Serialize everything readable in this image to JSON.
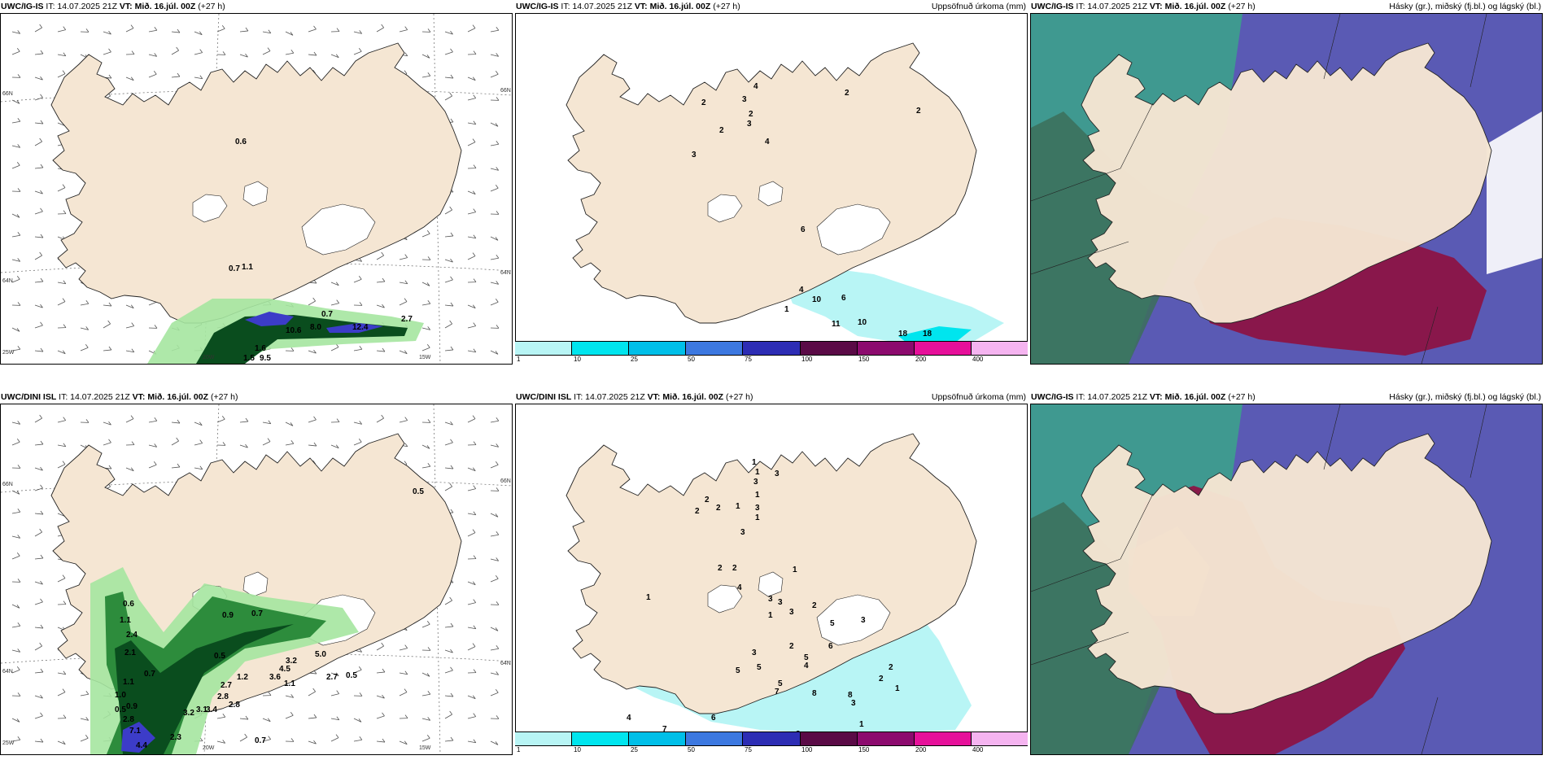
{
  "rows": [
    {
      "model": "UWC/IG-IS",
      "it_label": "IT: 14.07.2025 21Z",
      "vt_label": "VT: Mið. 16.júl. 00Z",
      "lead": "(+27 h)"
    },
    {
      "model": "UWC/DINI ISL",
      "it_label": "IT: 14.07.2025 21Z",
      "vt_label": "VT: Mið. 16.júl. 00Z",
      "lead": "(+27 h)"
    }
  ],
  "row3_model": [
    "UWC/IG-IS",
    "UWC/IG-IS"
  ],
  "panel_titles": {
    "wind": "",
    "precip": "Uppsöfnuð úrkoma (mm)",
    "cloud": "Hásky (gr.), miðský (fj.bl.) og lágský (bl.)"
  },
  "grid_labels": {
    "lat_66": "66N",
    "lat_64": "64N",
    "lat_25w": "25W",
    "lon_20w": "20W",
    "lon_15w": "15W"
  },
  "precip_colorbar": {
    "ticks": [
      "1",
      "10",
      "25",
      "50",
      "75",
      "100",
      "150",
      "200",
      "400"
    ],
    "colors": [
      "#b8f5f5",
      "#00e5ee",
      "#00bfe8",
      "#3c78e0",
      "#2d2db4",
      "#5a0a46",
      "#8c0a6e",
      "#e6109a",
      "#f5b4f0"
    ]
  },
  "map_colors": {
    "land": "#f5e6d3",
    "sea": "#ffffff",
    "glacier": "#ffffff",
    "precip_light": "#a5e6a0",
    "precip_mid": "#2d8c3c",
    "precip_dark": "#0a4d1e",
    "precip_heavy": "#3c3cc8",
    "cloud_high": "#5a5ab4",
    "cloud_mid": "#8c1446",
    "cloud_low": "#3ca08c",
    "cloud_green": "#28c88c"
  },
  "wind_labels_row1": [
    "0.6",
    "0.7",
    "1.1",
    "0.7",
    "8.0",
    "10.6",
    "12.4",
    "2.7",
    "1.6",
    "1.5",
    "9.5"
  ],
  "wind_labels_row2": [
    "0.6",
    "0.5",
    "1.1",
    "2.1",
    "2.4",
    "0.5",
    "1.1",
    "0.7",
    "1.0",
    "0.9",
    "2.8",
    "7.1",
    "4.4",
    "2.3",
    "3.2",
    "3.1",
    "3.4",
    "2.8",
    "2.7",
    "1.2",
    "0.9",
    "2.8",
    "0.7",
    "0.5",
    "4.5",
    "3.6",
    "3.2",
    "5.0",
    "1.1",
    "2.7",
    "0.7",
    "0.5"
  ],
  "precip_labels_row1": [
    "4",
    "3",
    "2",
    "3",
    "2",
    "3",
    "2",
    "4",
    "2",
    "2",
    "6",
    "4",
    "1",
    "10",
    "6",
    "11",
    "10",
    "18",
    "18"
  ],
  "precip_labels_row2": [
    "1",
    "1",
    "3",
    "3",
    "1",
    "2",
    "2",
    "2",
    "1",
    "3",
    "1",
    "3",
    "2",
    "2",
    "1",
    "4",
    "1",
    "3",
    "3",
    "1",
    "3",
    "2",
    "3",
    "5",
    "6",
    "2",
    "3",
    "5",
    "4",
    "5",
    "5",
    "5",
    "7",
    "8",
    "8",
    "3",
    "2",
    "2",
    "1",
    "4",
    "7",
    "6",
    "8",
    "3",
    "1"
  ]
}
